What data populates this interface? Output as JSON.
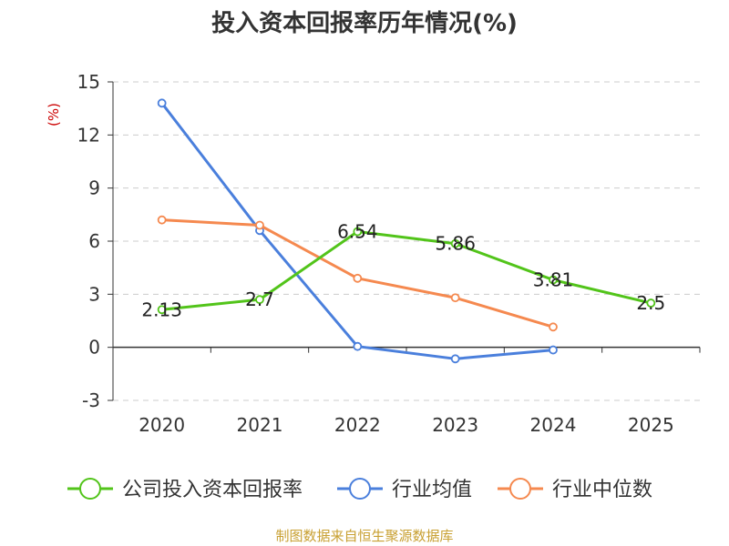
{
  "chart_data": {
    "type": "line",
    "title": "投入资本回报率历年情况(%)",
    "ylabel": "(%)",
    "categories": [
      "2020",
      "2021",
      "2022",
      "2023",
      "2024",
      "2025"
    ],
    "ylim": [
      -3,
      15
    ],
    "yticks": [
      15,
      12,
      9,
      6,
      3,
      0,
      -3
    ],
    "grid": true,
    "legend_position": "bottom",
    "series": [
      {
        "name": "公司投入资本回报率",
        "color": "#52c41a",
        "values": [
          2.13,
          2.7,
          6.54,
          5.86,
          3.81,
          2.5
        ],
        "labels": [
          "2.13",
          "2.7",
          "6.54",
          "5.86",
          "3.81",
          "2.5"
        ]
      },
      {
        "name": "行业均值",
        "color": "#4a7fdc",
        "values": [
          13.8,
          6.6,
          0.05,
          -0.65,
          -0.15,
          null
        ]
      },
      {
        "name": "行业中位数",
        "color": "#f5894f",
        "values": [
          7.2,
          6.9,
          3.9,
          2.8,
          1.15,
          null
        ]
      }
    ],
    "source": "制图数据来自恒生聚源数据库"
  }
}
